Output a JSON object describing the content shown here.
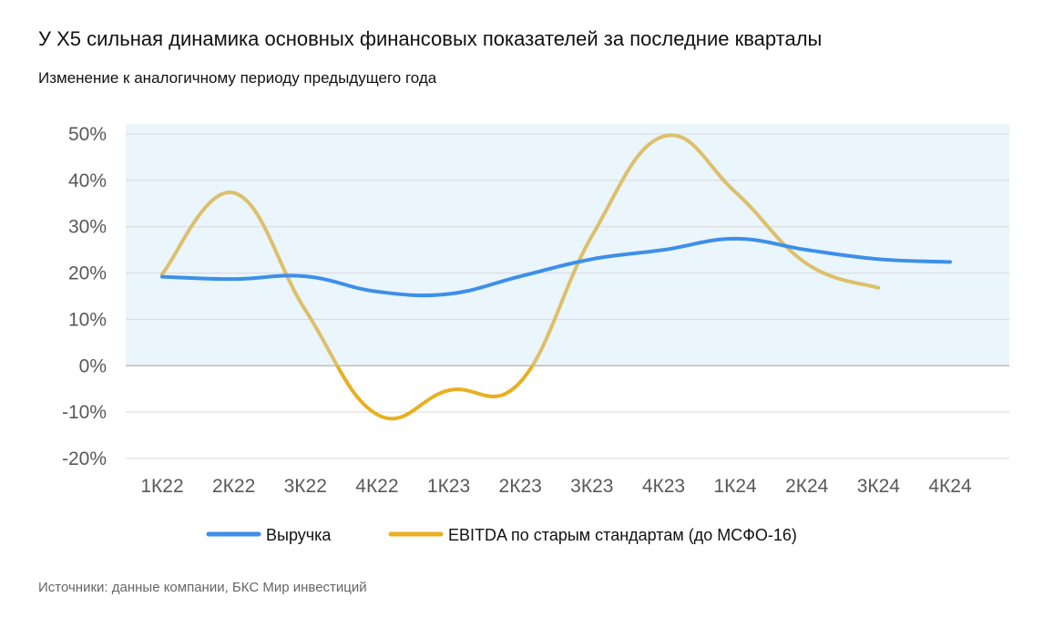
{
  "header": {
    "title": "У Х5 сильная динамика основных финансовых показателей за последние кварталы",
    "subtitle": "Изменение к аналогичному периоду предыдущего года"
  },
  "footer": {
    "source": "Источники: данные компании, БКС Мир инвестиций"
  },
  "colors": {
    "revenue": "#3d8fe8",
    "ebitda_negative": "#e8b020",
    "ebitda_positive": "#dcc06a",
    "positive_band": "#eaf5fc",
    "grid": "#d9d9d9",
    "tick_text": "#595959"
  },
  "chart_data": {
    "type": "line",
    "title": "У Х5 сильная динамика основных финансовых показателей за последние кварталы",
    "subtitle": "Изменение к аналогичному периоду предыдущего года",
    "xlabel": "",
    "ylabel": "",
    "categories": [
      "1К22",
      "2К22",
      "3К22",
      "4К22",
      "1К23",
      "2К23",
      "3К23",
      "4К23",
      "1К24",
      "2К24",
      "3К24",
      "4К24"
    ],
    "y_ticks": [
      "50%",
      "40%",
      "30%",
      "20%",
      "10%",
      "0%",
      "-10%",
      "-20%"
    ],
    "ylim": [
      -20,
      50
    ],
    "grid": true,
    "legend_position": "bottom",
    "series": [
      {
        "name": "Выручка",
        "values": [
          19.2,
          18.7,
          19.3,
          16.0,
          15.5,
          19.3,
          23.0,
          25.0,
          27.4,
          25.0,
          23.0,
          22.4
        ]
      },
      {
        "name": "EBITDA по старым стандартам (до МСФО-16)",
        "values": [
          19.8,
          37.3,
          12.0,
          -10.5,
          -5.3,
          -3.5,
          28.0,
          49.5,
          37.5,
          22.0,
          16.8,
          null
        ]
      }
    ]
  }
}
